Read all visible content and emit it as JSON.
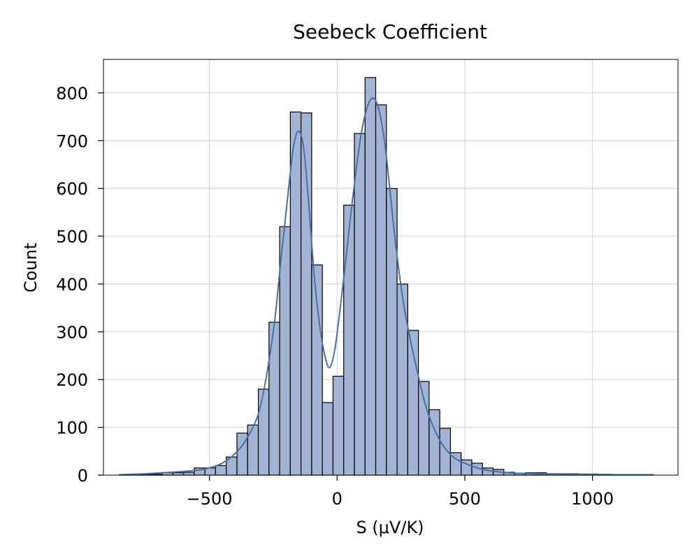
{
  "chart_data": {
    "type": "histogram",
    "title": "Seebeck Coefficient",
    "xlabel": "S (μV/K)",
    "ylabel": "Count",
    "xlim": [
      -915,
      1335
    ],
    "ylim": [
      0,
      870
    ],
    "xticks": [
      -500,
      0,
      500,
      1000
    ],
    "xtick_labels": [
      "−500",
      "0",
      "500",
      "1000"
    ],
    "yticks": [
      0,
      100,
      200,
      300,
      400,
      500,
      600,
      700,
      800
    ],
    "yticks_labels": [
      "0",
      "100",
      "200",
      "300",
      "400",
      "500",
      "600",
      "700",
      "800"
    ],
    "grid": true,
    "bin_start": -852,
    "bin_width": 41.8,
    "counts": [
      1,
      2,
      2,
      2,
      5,
      5,
      6,
      15,
      15,
      20,
      38,
      88,
      105,
      180,
      320,
      520,
      760,
      758,
      440,
      152,
      207,
      565,
      715,
      832,
      775,
      600,
      400,
      303,
      196,
      137,
      98,
      47,
      32,
      25,
      15,
      12,
      6,
      4,
      5,
      5,
      3,
      3,
      3,
      2,
      2,
      2,
      1,
      1,
      1,
      1
    ],
    "kde_curve": {
      "x": [
        -850,
        -750,
        -650,
        -550,
        -500,
        -450,
        -400,
        -350,
        -300,
        -250,
        -220,
        -190,
        -170,
        -150,
        -130,
        -110,
        -90,
        -70,
        -50,
        -30,
        -10,
        10,
        30,
        50,
        70,
        90,
        110,
        130,
        150,
        170,
        190,
        210,
        230,
        260,
        300,
        350,
        400,
        450,
        500,
        550,
        600,
        650,
        700,
        800,
        900,
        1000,
        1100,
        1235
      ],
      "y": [
        1,
        3,
        6,
        10,
        15,
        25,
        45,
        80,
        145,
        300,
        450,
        600,
        690,
        720,
        680,
        560,
        420,
        320,
        255,
        225,
        260,
        340,
        430,
        530,
        620,
        700,
        755,
        785,
        785,
        750,
        680,
        580,
        480,
        360,
        250,
        140,
        75,
        40,
        25,
        15,
        9,
        6,
        4,
        3,
        2,
        2,
        1,
        1
      ]
    },
    "colors": {
      "bar": "#a2b4d4",
      "edge": "#000000",
      "kde": "#4a6fa5"
    }
  }
}
